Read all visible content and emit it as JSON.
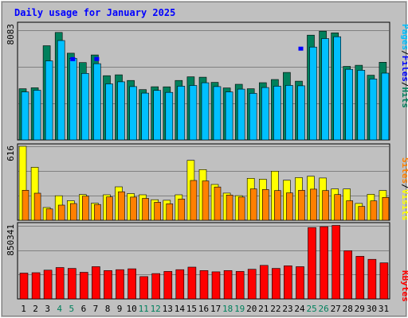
{
  "chart_data": [
    {
      "type": "bar",
      "panel": "hits",
      "title": "Daily usage for January 2025",
      "y_max_label": "8083",
      "right_label": {
        "parts": [
          "Pages",
          "/",
          "Files",
          "/",
          "Hits"
        ]
      },
      "categories": [
        "1",
        "2",
        "3",
        "4",
        "5",
        "6",
        "7",
        "8",
        "9",
        "10",
        "11",
        "12",
        "13",
        "14",
        "15",
        "16",
        "17",
        "18",
        "19",
        "20",
        "21",
        "22",
        "23",
        "24",
        "25",
        "26",
        "27",
        "28",
        "29",
        "30",
        "31"
      ],
      "weekend_days": [
        "4",
        "5",
        "11",
        "12",
        "18",
        "19",
        "25",
        "26"
      ],
      "ylim": [
        0,
        8083
      ],
      "series": [
        {
          "name": "Hits",
          "values": [
            3770,
            3840,
            6940,
            7920,
            6390,
            5700,
            6260,
            4730,
            4800,
            4380,
            3710,
            3920,
            3910,
            4380,
            4650,
            4620,
            4240,
            3830,
            4100,
            3770,
            4220,
            4450,
            4970,
            4330,
            7720,
            8010,
            7890,
            5420,
            5500,
            4770,
            5720
          ]
        },
        {
          "name": "Files",
          "values": [
            3540,
            3660,
            5820,
            7320,
            6010,
            4900,
            5620,
            4130,
            4280,
            3930,
            3450,
            3650,
            3500,
            3960,
            4010,
            4210,
            3930,
            3540,
            3740,
            3430,
            3860,
            3960,
            4020,
            3990,
            6840,
            7470,
            7600,
            5200,
            5130,
            4490,
            4920
          ]
        },
        {
          "name": "Pages",
          "values": [
            0,
            0,
            0,
            0,
            6100,
            0,
            6110,
            0,
            0,
            0,
            0,
            0,
            0,
            0,
            0,
            0,
            0,
            0,
            0,
            0,
            0,
            0,
            0,
            6870,
            0,
            0,
            0,
            0,
            0,
            0,
            0
          ]
        }
      ]
    },
    {
      "type": "bar",
      "panel": "visits",
      "y_max_label": "616",
      "right_label": {
        "parts": [
          "Sites",
          "/",
          "Visits"
        ]
      },
      "ylim": [
        0,
        616
      ],
      "series": [
        {
          "name": "Visits",
          "values": [
            616,
            441,
            106,
            204,
            162,
            214,
            142,
            212,
            278,
            222,
            212,
            171,
            166,
            212,
            499,
            422,
            298,
            226,
            205,
            349,
            342,
            409,
            333,
            355,
            366,
            352,
            261,
            260,
            140,
            216,
            248
          ]
        },
        {
          "name": "Sites",
          "values": [
            250,
            225,
            94,
            126,
            139,
            201,
            131,
            194,
            237,
            193,
            182,
            150,
            137,
            176,
            331,
            327,
            277,
            210,
            193,
            261,
            256,
            247,
            228,
            249,
            259,
            247,
            214,
            162,
            115,
            161,
            190
          ]
        }
      ]
    },
    {
      "type": "bar",
      "panel": "kbytes",
      "y_max_label": "850341",
      "right_label": {
        "parts": [
          "KBytes"
        ]
      },
      "ylim": [
        0,
        850341
      ],
      "series": [
        {
          "name": "KBytes",
          "values": [
            300000,
            305000,
            335000,
            365000,
            355000,
            310000,
            375000,
            330000,
            340000,
            350000,
            260000,
            295000,
            320000,
            340000,
            370000,
            330000,
            315000,
            330000,
            320000,
            345000,
            390000,
            355000,
            385000,
            375000,
            830000,
            840000,
            855000,
            560000,
            495000,
            460000,
            420000
          ]
        }
      ]
    }
  ],
  "colors": {
    "background": "#c0c0c0",
    "panel": "#c0c0c0",
    "title": "#0000ff",
    "hits": "#00805c",
    "files": "#00c0ff",
    "pages": "#0000ff",
    "visits": "#ffff00",
    "sites": "#ff8000",
    "kbytes": "#ff0000",
    "weekend_label": "#00805c",
    "weekday_label": "#000000"
  }
}
